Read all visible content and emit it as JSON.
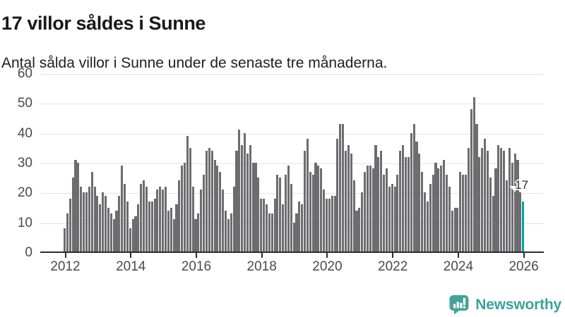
{
  "header": {
    "title": "17 villor såldes i Sunne",
    "subtitle": "Antal sålda villor i Sunne under de senaste tre månaderna."
  },
  "chart_data": {
    "type": "bar",
    "title": "17 villor såldes i Sunne",
    "subtitle": "Antal sålda villor i Sunne under de senaste tre månaderna.",
    "frequency": "monthly",
    "start_year": 2012,
    "values": [
      8,
      13,
      18,
      25,
      31,
      30,
      22,
      20,
      20,
      22,
      27,
      22,
      19,
      16,
      20,
      19,
      15,
      13,
      11,
      14,
      19,
      29,
      23,
      17,
      8,
      11,
      12,
      16,
      23,
      24,
      22,
      17,
      17,
      18,
      21,
      22,
      21,
      22,
      14,
      15,
      11,
      16,
      24,
      29,
      30,
      39,
      35,
      22,
      11,
      13,
      21,
      26,
      34,
      35,
      34,
      31,
      29,
      27,
      21,
      14,
      11,
      13,
      22,
      34,
      41,
      36,
      40,
      33,
      36,
      30,
      30,
      25,
      18,
      18,
      16,
      13,
      13,
      18,
      26,
      25,
      16,
      26,
      29,
      23,
      10,
      13,
      17,
      16,
      34,
      38,
      27,
      26,
      30,
      29,
      28,
      21,
      18,
      18,
      19,
      19,
      38,
      43,
      43,
      34,
      36,
      33,
      24,
      14,
      15,
      20,
      27,
      29,
      29,
      28,
      36,
      32,
      34,
      26,
      28,
      22,
      23,
      22,
      26,
      34,
      36,
      32,
      32,
      40,
      43,
      37,
      33,
      27,
      20,
      17,
      23,
      26,
      30,
      28,
      29,
      31,
      26,
      22,
      14,
      15,
      15,
      27,
      26,
      26,
      35,
      48,
      52,
      43,
      32,
      35,
      38,
      34,
      25,
      19,
      28,
      36,
      35,
      34,
      24,
      35,
      30,
      33,
      31,
      20,
      17
    ],
    "highlight_index": 168,
    "highlight_value": 17,
    "annotation": {
      "text": "17"
    },
    "ylim": [
      0,
      60
    ],
    "yticks": [
      0,
      10,
      20,
      30,
      40,
      50,
      60
    ],
    "xtick_labels": [
      "2012",
      "2014",
      "2016",
      "2018",
      "2020",
      "2022",
      "2024",
      "2026"
    ],
    "xtick_month_step": 24,
    "grid": "horizontal",
    "legend": "none",
    "colors": {
      "bar": "#6d6d70",
      "highlight": "#00a49b",
      "gridline": "#e4e4e6",
      "axis": "#2d2d2d",
      "tick_label": "#4a4a4e",
      "annotation_text": "#2e2e2e"
    }
  },
  "footer": {
    "brand": "Newsworthy",
    "brand_color": "#3aa39c"
  }
}
